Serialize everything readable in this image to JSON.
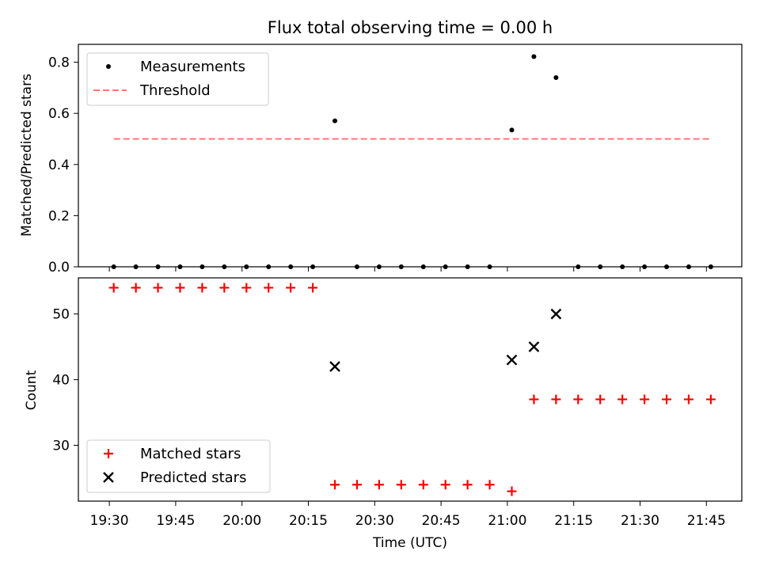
{
  "chart_data": {
    "title": "Flux total observing time = 0.00 h",
    "xlabel": "Time (UTC)",
    "xticks": [
      "19:30",
      "19:45",
      "20:00",
      "20:15",
      "20:30",
      "20:45",
      "21:00",
      "21:15",
      "21:30",
      "21:45"
    ],
    "xlim": [
      "19:23",
      "21:53"
    ],
    "grid": false,
    "panels": [
      {
        "type": "scatter",
        "ylabel": "Matched/Predicted stars",
        "ylim": [
          0,
          0.87
        ],
        "yticks": [
          "0.0",
          "0.2",
          "0.4",
          "0.6",
          "0.8"
        ],
        "legend_position": "top-left",
        "series": [
          {
            "name": "Measurements",
            "color": "#000000",
            "marker": "dot",
            "points": [
              {
                "x": "19:31",
                "y": 0.0
              },
              {
                "x": "19:36",
                "y": 0.0
              },
              {
                "x": "19:41",
                "y": 0.0
              },
              {
                "x": "19:46",
                "y": 0.0
              },
              {
                "x": "19:51",
                "y": 0.0
              },
              {
                "x": "19:56",
                "y": 0.0
              },
              {
                "x": "20:01",
                "y": 0.0
              },
              {
                "x": "20:06",
                "y": 0.0
              },
              {
                "x": "20:11",
                "y": 0.0
              },
              {
                "x": "20:16",
                "y": 0.0
              },
              {
                "x": "20:21",
                "y": 0.571
              },
              {
                "x": "20:26",
                "y": 0.0
              },
              {
                "x": "20:31",
                "y": 0.0
              },
              {
                "x": "20:36",
                "y": 0.0
              },
              {
                "x": "20:41",
                "y": 0.0
              },
              {
                "x": "20:46",
                "y": 0.0
              },
              {
                "x": "20:51",
                "y": 0.0
              },
              {
                "x": "20:56",
                "y": 0.0
              },
              {
                "x": "21:01",
                "y": 0.535
              },
              {
                "x": "21:06",
                "y": 0.822
              },
              {
                "x": "21:11",
                "y": 0.74
              },
              {
                "x": "21:16",
                "y": 0.0
              },
              {
                "x": "21:21",
                "y": 0.0
              },
              {
                "x": "21:26",
                "y": 0.0
              },
              {
                "x": "21:31",
                "y": 0.0
              },
              {
                "x": "21:36",
                "y": 0.0
              },
              {
                "x": "21:41",
                "y": 0.0
              },
              {
                "x": "21:46",
                "y": 0.0
              }
            ]
          },
          {
            "name": "Threshold",
            "color": "#ff7777",
            "line": "dashed",
            "points": [
              {
                "x": "19:31",
                "y": 0.5
              },
              {
                "x": "21:46",
                "y": 0.5
              }
            ]
          }
        ]
      },
      {
        "type": "scatter",
        "ylabel": "Count",
        "ylim": [
          21.5,
          55.5
        ],
        "yticks": [
          "30",
          "40",
          "50"
        ],
        "legend_position": "bottom-left",
        "series": [
          {
            "name": "Matched stars",
            "color": "#ff0000",
            "marker": "plus",
            "points": [
              {
                "x": "19:31",
                "y": 54
              },
              {
                "x": "19:36",
                "y": 54
              },
              {
                "x": "19:41",
                "y": 54
              },
              {
                "x": "19:46",
                "y": 54
              },
              {
                "x": "19:51",
                "y": 54
              },
              {
                "x": "19:56",
                "y": 54
              },
              {
                "x": "20:01",
                "y": 54
              },
              {
                "x": "20:06",
                "y": 54
              },
              {
                "x": "20:11",
                "y": 54
              },
              {
                "x": "20:16",
                "y": 54
              },
              {
                "x": "20:21",
                "y": 24
              },
              {
                "x": "20:26",
                "y": 24
              },
              {
                "x": "20:31",
                "y": 24
              },
              {
                "x": "20:36",
                "y": 24
              },
              {
                "x": "20:41",
                "y": 24
              },
              {
                "x": "20:46",
                "y": 24
              },
              {
                "x": "20:51",
                "y": 24
              },
              {
                "x": "20:56",
                "y": 24
              },
              {
                "x": "21:01",
                "y": 23
              },
              {
                "x": "21:06",
                "y": 37
              },
              {
                "x": "21:11",
                "y": 37
              },
              {
                "x": "21:16",
                "y": 37
              },
              {
                "x": "21:21",
                "y": 37
              },
              {
                "x": "21:26",
                "y": 37
              },
              {
                "x": "21:31",
                "y": 37
              },
              {
                "x": "21:36",
                "y": 37
              },
              {
                "x": "21:41",
                "y": 37
              },
              {
                "x": "21:46",
                "y": 37
              }
            ]
          },
          {
            "name": "Predicted stars",
            "color": "#000000",
            "marker": "x",
            "points": [
              {
                "x": "20:21",
                "y": 42
              },
              {
                "x": "21:01",
                "y": 43
              },
              {
                "x": "21:06",
                "y": 45
              },
              {
                "x": "21:11",
                "y": 50
              }
            ]
          }
        ]
      }
    ]
  }
}
